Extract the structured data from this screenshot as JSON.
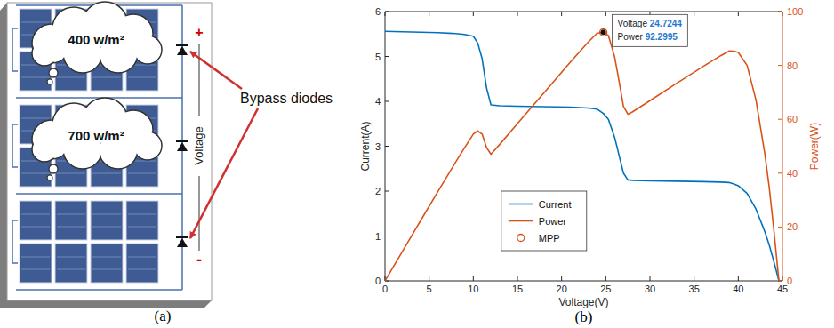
{
  "diagram": {
    "panel_label": "(a)",
    "clouds": [
      {
        "label": "400 w/m²"
      },
      {
        "label": "700 w/m²"
      }
    ],
    "terminals": {
      "plus": "+",
      "minus": "-"
    },
    "voltage_label": "Voltage",
    "callout": "Bypass diodes"
  },
  "chart_data": {
    "type": "line",
    "panel_label": "(b)",
    "x_label": "Voltage(V)",
    "y_label": "Current(A)",
    "y2_label": "Power(W)",
    "x": [
      0,
      2,
      4,
      6,
      8,
      9,
      10,
      10.5,
      11,
      11.5,
      12,
      13,
      15,
      18,
      21,
      23,
      24,
      24.7244,
      25.3,
      26,
      26.5,
      27,
      27.5,
      28,
      30,
      33,
      36,
      38,
      39,
      39.5,
      40,
      41,
      42,
      43,
      43.5,
      44,
      44.6
    ],
    "series": [
      {
        "name": "Current",
        "color": "#0072bd",
        "values": [
          5.56,
          5.55,
          5.54,
          5.53,
          5.51,
          5.49,
          5.45,
          5.3,
          4.95,
          4.3,
          3.92,
          3.9,
          3.89,
          3.88,
          3.87,
          3.85,
          3.83,
          3.73,
          3.6,
          3.2,
          2.8,
          2.4,
          2.25,
          2.24,
          2.23,
          2.22,
          2.21,
          2.2,
          2.19,
          2.16,
          2.12,
          1.95,
          1.6,
          1.1,
          0.8,
          0.45,
          0
        ]
      },
      {
        "name": "Power",
        "color": "#d95319",
        "axis": "y2",
        "values": [
          0,
          11.1,
          22.2,
          33.2,
          44.1,
          49.4,
          54.5,
          55.7,
          54.5,
          49.5,
          47,
          50.7,
          58.4,
          69.8,
          81.3,
          88.6,
          91.9,
          92.2995,
          91.1,
          83.2,
          74.2,
          64.8,
          61.9,
          62.7,
          66.9,
          73.3,
          79.6,
          83.6,
          85.4,
          85.3,
          84.8,
          80,
          67.2,
          47.3,
          34.8,
          19.8,
          0
        ]
      },
      {
        "name": "MPP",
        "color": "#d95319",
        "axis": "y2",
        "type": "scatter",
        "marker": "circle",
        "x": [
          24.7244
        ],
        "values": [
          92.2995
        ]
      }
    ],
    "xlim": [
      0,
      45
    ],
    "xticks": [
      0,
      5,
      10,
      15,
      20,
      25,
      30,
      35,
      40,
      45
    ],
    "ylim": [
      0,
      6
    ],
    "yticks": [
      0,
      1,
      2,
      3,
      4,
      5,
      6
    ],
    "y2lim": [
      0,
      100
    ],
    "y2ticks": [
      0,
      20,
      40,
      60,
      80,
      100
    ],
    "grid": false,
    "legend": "lower center",
    "annotations": [
      {
        "axis": "y2",
        "labels": [
          {
            "name": "Voltage",
            "value": 24.7244
          },
          {
            "name": "Power",
            "value": 92.2995
          }
        ]
      }
    ]
  }
}
